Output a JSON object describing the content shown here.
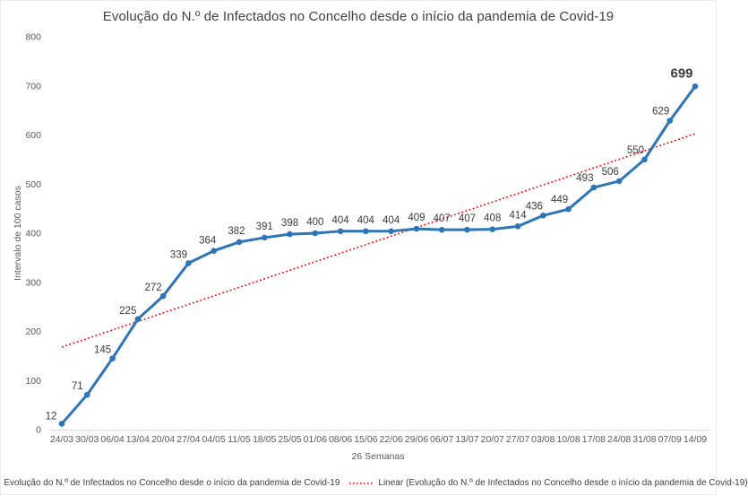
{
  "chart_data": {
    "type": "line",
    "title": "Evolução do N.º de Infectados no Concelho desde o início da pandemia de Covid-19",
    "xlabel": "26 Semanas",
    "ylabel": "Intervalo de 100 casos",
    "ylim": [
      0,
      800
    ],
    "yticks": [
      0,
      100,
      200,
      300,
      400,
      500,
      600,
      700,
      800
    ],
    "grid": false,
    "legend_position": "bottom",
    "categories": [
      "24/03",
      "30/03",
      "06/04",
      "13/04",
      "20/04",
      "27/04",
      "04/05",
      "11/05",
      "18/05",
      "25/05",
      "01/06",
      "08/06",
      "15/06",
      "22/06",
      "29/06",
      "06/07",
      "13/07",
      "20/07",
      "27/07",
      "03/08",
      "10/08",
      "17/08",
      "24/08",
      "31/08",
      "07/09",
      "14/09"
    ],
    "series": [
      {
        "name": "Evolução do N.º de Infectados no Concelho desde o início da pandemia de Covid-19",
        "values": [
          12,
          71,
          145,
          225,
          272,
          339,
          364,
          382,
          391,
          398,
          400,
          404,
          404,
          404,
          409,
          407,
          407,
          408,
          414,
          436,
          449,
          493,
          506,
          550,
          629,
          699
        ],
        "color": "#2E75B6",
        "marker": "circle",
        "data_labels": true
      }
    ],
    "trendline": {
      "name": "Linear (Evolução do N.º de Infectados no Concelho desde o início da pandemia de Covid-19)",
      "color": "#FF0000",
      "style": "dotted"
    },
    "final_label": {
      "value": 699,
      "color": "#FF0000",
      "bold": true
    },
    "label_color": "#3b3b3b",
    "axis_line_color": "#D9D9D9"
  },
  "legend": {
    "series_label": "Evolução do N.º de Infectados no Concelho desde o início da pandemia de Covid-19",
    "trend_label": "Linear (Evolução do N.º de Infectados no Concelho desde o início da pandemia de Covid-19)"
  }
}
